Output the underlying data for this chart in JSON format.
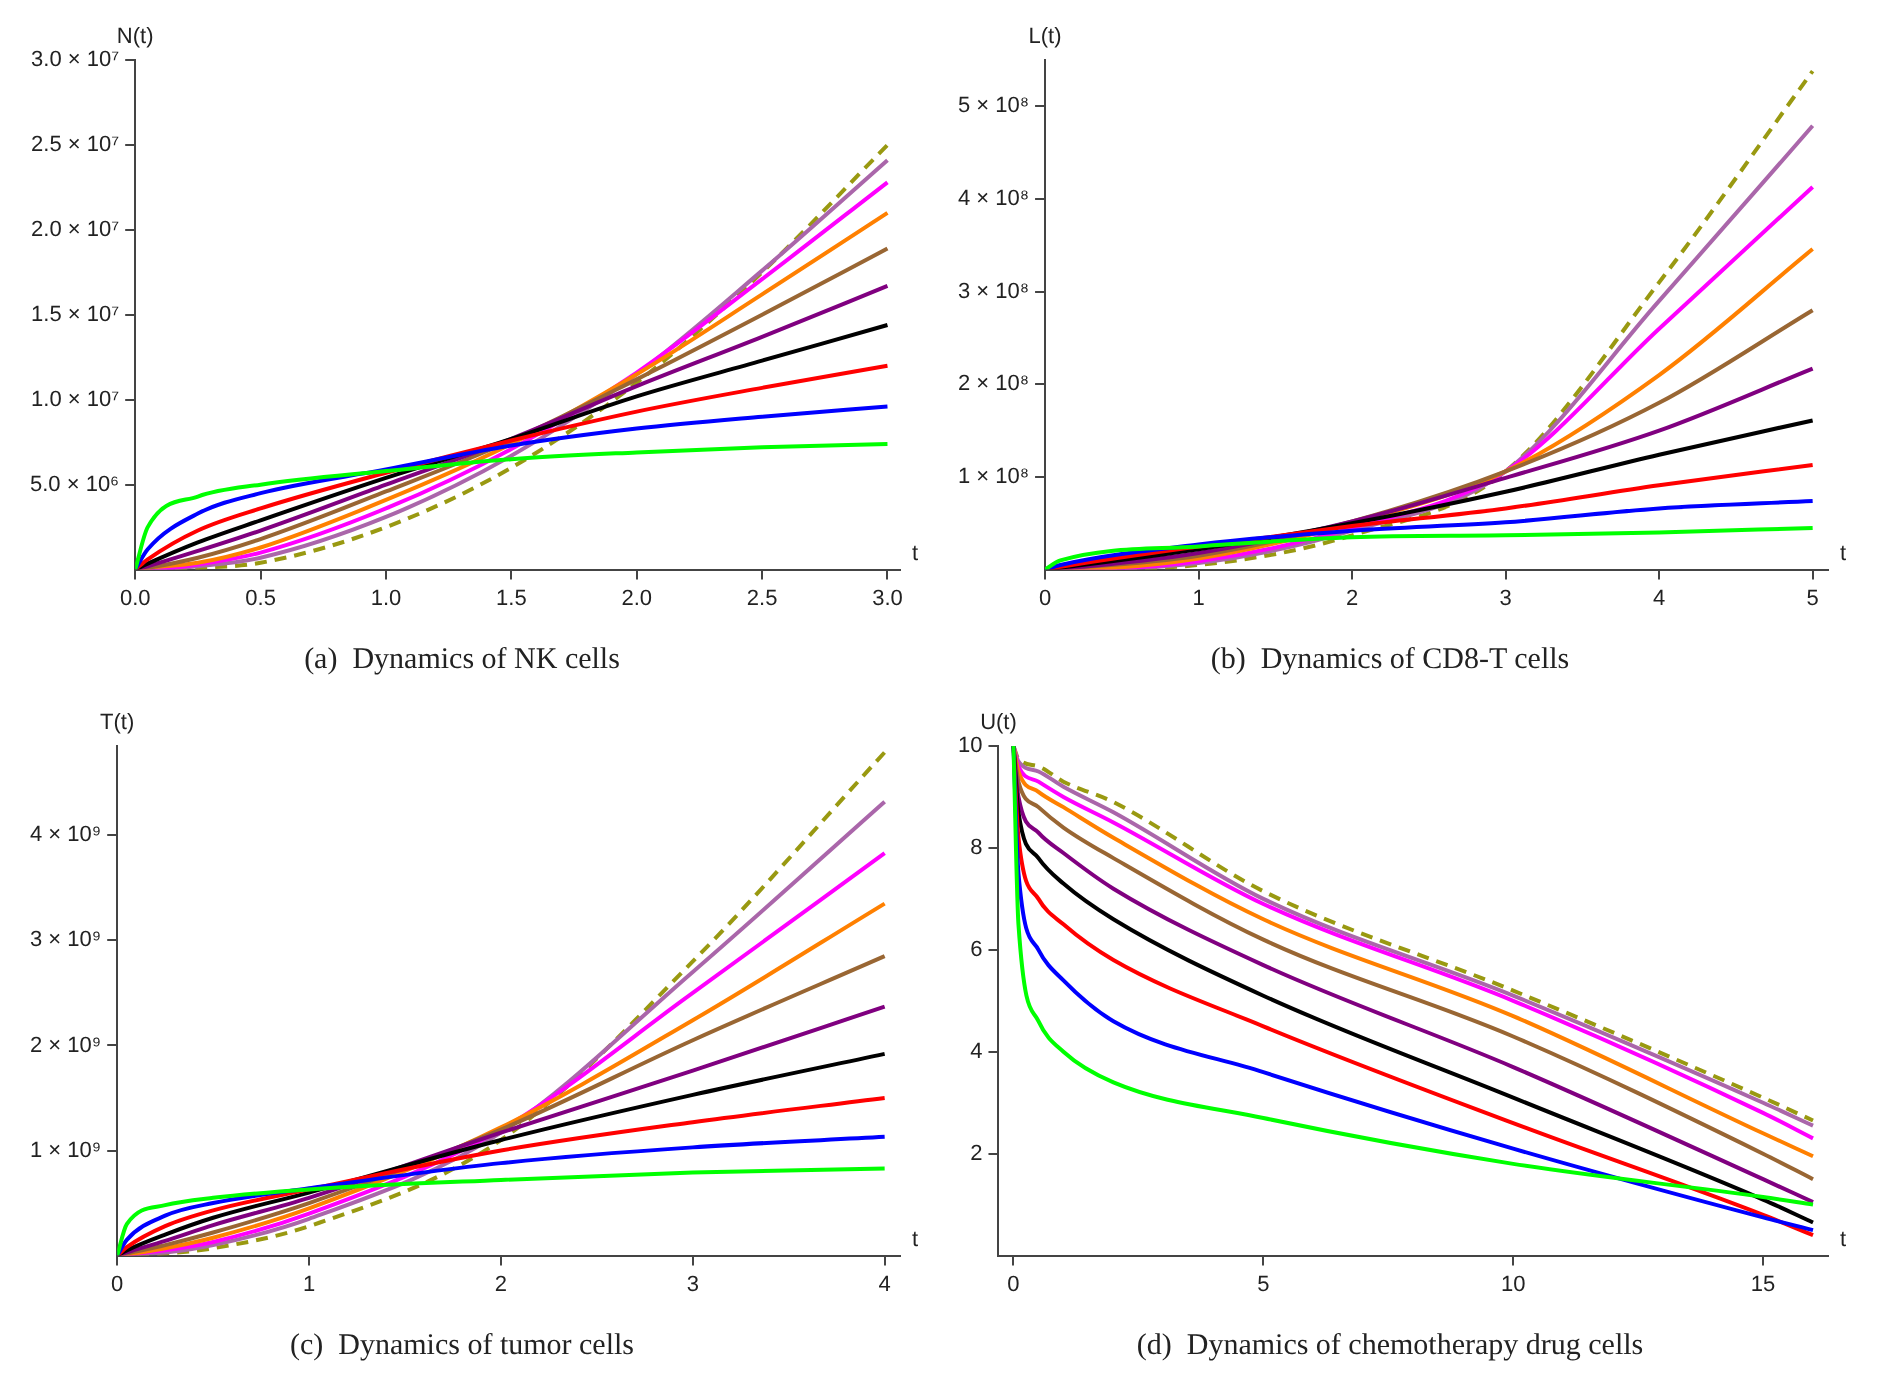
{
  "chart_data": [
    {
      "type": "line",
      "title": "(a)  Dynamics of NK cells",
      "xlabel": "t",
      "ylabel": "N(t)",
      "x": [
        0,
        0.05,
        0.25,
        0.5,
        1,
        1.5,
        2,
        2.5,
        3
      ],
      "xlim": [
        0,
        3.05
      ],
      "ylim": [
        0,
        30000000.0
      ],
      "xticks": [
        {
          "value": 0,
          "label": "0.0"
        },
        {
          "value": 0.5,
          "label": "0.5"
        },
        {
          "value": 1,
          "label": "1.0"
        },
        {
          "value": 1.5,
          "label": "1.5"
        },
        {
          "value": 2,
          "label": "2.0"
        },
        {
          "value": 2.5,
          "label": "2.5"
        },
        {
          "value": 3,
          "label": "3.0"
        }
      ],
      "yticks": [
        {
          "value": 5000000.0,
          "label": "5.0 × 10⁶"
        },
        {
          "value": 10000000.0,
          "label": "1.0 × 10⁷"
        },
        {
          "value": 15000000.0,
          "label": "1.5 × 10⁷"
        },
        {
          "value": 20000000.0,
          "label": "2.0 × 10⁷"
        },
        {
          "value": 25000000.0,
          "label": "2.5 × 10⁷"
        },
        {
          "value": 30000000.0,
          "label": "3.0 × 10⁷"
        }
      ],
      "series": [
        {
          "color": "#00ff00",
          "values": [
            0,
            2500000.0,
            4300000.0,
            5000000.0,
            5800000.0,
            6500000.0,
            6900000.0,
            7200000.0,
            7400000.0
          ]
        },
        {
          "color": "#0000ff",
          "values": [
            0,
            1200000.0,
            3300000.0,
            4500000.0,
            5900000.0,
            7300000.0,
            8300000.0,
            9000000.0,
            9600000.0
          ]
        },
        {
          "color": "#ff0000",
          "values": [
            0,
            600000.0,
            2300000.0,
            3600000.0,
            5700000.0,
            7600000.0,
            9300000.0,
            10700000.0,
            12000000.0
          ]
        },
        {
          "color": "#000000",
          "values": [
            0,
            350000.0,
            1600000.0,
            2900000.0,
            5400000.0,
            7700000.0,
            10200000.0,
            12300000.0,
            14400000.0
          ]
        },
        {
          "color": "#800080",
          "values": [
            0,
            200000.0,
            1100000.0,
            2300000.0,
            5000000.0,
            7700000.0,
            10800000.0,
            13700000.0,
            16700000.0
          ]
        },
        {
          "color": "#996633",
          "values": [
            0,
            100000.0,
            700000.0,
            1800000.0,
            4600000.0,
            7600000.0,
            11200000.0,
            15000000.0,
            18900000.0
          ]
        },
        {
          "color": "#ff8000",
          "values": [
            0,
            100000.0,
            400000.0,
            1300000.0,
            4100000.0,
            7400000.0,
            11500000.0,
            16200000.0,
            21000000.0
          ]
        },
        {
          "color": "#ff00ff",
          "values": [
            0,
            0,
            300000.0,
            1000000.0,
            3600000.0,
            7100000.0,
            11600000.0,
            17100000.0,
            22800000.0
          ]
        },
        {
          "color": "#aa66aa",
          "values": [
            0,
            0,
            200000.0,
            700000.0,
            3100000.0,
            6700000.0,
            11500000.0,
            17600000.0,
            24100000.0
          ]
        },
        {
          "color": "#999911",
          "line_style": "dashed",
          "values": [
            0,
            0,
            100000.0,
            400000.0,
            2500000.0,
            6000000.0,
            11000000.0,
            17500000.0,
            25000000.0
          ]
        }
      ]
    },
    {
      "type": "line",
      "title": "(b)  Dynamics of CD8-T cells",
      "xlabel": "t",
      "ylabel": "L(t)",
      "x": [
        0,
        0.1,
        1,
        2,
        3,
        4,
        5
      ],
      "xlim": [
        0,
        5.1
      ],
      "ylim": [
        0,
        550000000.0
      ],
      "xticks": [
        0,
        1,
        2,
        3,
        4,
        5
      ],
      "yticks": [
        {
          "value": 100000000.0,
          "label": "1 × 10⁸"
        },
        {
          "value": 200000000.0,
          "label": "2 × 10⁸"
        },
        {
          "value": 300000000.0,
          "label": "3 × 10⁸"
        },
        {
          "value": 400000000.0,
          "label": "4 × 10⁸"
        },
        {
          "value": 500000000.0,
          "label": "5 × 10⁸"
        }
      ],
      "series": [
        {
          "color": "#00ff00",
          "values": [
            0,
            10000000.0,
            25000000.0,
            35000000.0,
            37000000.0,
            40000000.0,
            45000000.0
          ]
        },
        {
          "color": "#0000ff",
          "values": [
            0,
            5000000.0,
            27000000.0,
            42000000.0,
            51000000.0,
            66000000.0,
            74000000.0
          ]
        },
        {
          "color": "#ff0000",
          "values": [
            0,
            3000000.0,
            25000000.0,
            47000000.0,
            66000000.0,
            91000000.0,
            113000000.0
          ]
        },
        {
          "color": "#000000",
          "values": [
            0,
            2000000.0,
            22000000.0,
            50000000.0,
            84000000.0,
            124000000.0,
            161000000.0
          ]
        },
        {
          "color": "#800080",
          "values": [
            0,
            1000000.0,
            18000000.0,
            52000000.0,
            99000000.0,
            150000000.0,
            217000000.0
          ]
        },
        {
          "color": "#996633",
          "values": [
            0,
            1000000.0,
            15000000.0,
            52000000.0,
            106000000.0,
            180000000.0,
            280000000.0
          ]
        },
        {
          "color": "#ff8000",
          "values": [
            0,
            0,
            12000000.0,
            50000000.0,
            106000000.0,
            210000000.0,
            346000000.0
          ]
        },
        {
          "color": "#ff00ff",
          "values": [
            0,
            0,
            9000000.0,
            45000000.0,
            106000000.0,
            260000000.0,
            413000000.0
          ]
        },
        {
          "color": "#aa66aa",
          "values": [
            0,
            0,
            7000000.0,
            42000000.0,
            106000000.0,
            290000000.0,
            479000000.0
          ]
        },
        {
          "color": "#999911",
          "line_style": "dashed",
          "values": [
            0,
            0,
            5000000.0,
            37000000.0,
            106000000.0,
            310000000.0,
            538000000.0
          ]
        }
      ]
    },
    {
      "type": "line",
      "title": "(c)  Dynamics of tumor cells",
      "xlabel": "t",
      "ylabel": "T(t)",
      "x": [
        0,
        0.05,
        0.25,
        0.5,
        1,
        2,
        3,
        4
      ],
      "xlim": [
        0,
        4.08
      ],
      "ylim": [
        0,
        4850000000.0
      ],
      "xticks": [
        0,
        1,
        2,
        3,
        4
      ],
      "yticks": [
        {
          "value": 1000000000.0,
          "label": "1 × 10⁹"
        },
        {
          "value": 2000000000.0,
          "label": "2 × 10⁹"
        },
        {
          "value": 3000000000.0,
          "label": "3 × 10⁹"
        },
        {
          "value": 4000000000.0,
          "label": "4 × 10⁹"
        }
      ],
      "series": [
        {
          "color": "#00ff00",
          "values": [
            0,
            300000000.0,
            480000000.0,
            550000000.0,
            630000000.0,
            720000000.0,
            790000000.0,
            830000000.0
          ]
        },
        {
          "color": "#0000ff",
          "values": [
            0,
            150000000.0,
            380000000.0,
            500000000.0,
            640000000.0,
            880000000.0,
            1030000000.0,
            1130000000.0
          ]
        },
        {
          "color": "#ff0000",
          "values": [
            0,
            80000000.0,
            280000000.0,
            430000000.0,
            630000000.0,
            1000000000.0,
            1270000000.0,
            1500000000.0
          ]
        },
        {
          "color": "#000000",
          "values": [
            0,
            50000000.0,
            200000000.0,
            360000000.0,
            600000000.0,
            1100000000.0,
            1530000000.0,
            1920000000.0
          ]
        },
        {
          "color": "#800080",
          "values": [
            0,
            30000000.0,
            140000000.0,
            290000000.0,
            550000000.0,
            1170000000.0,
            1760000000.0,
            2370000000.0
          ]
        },
        {
          "color": "#996633",
          "values": [
            0,
            20000000.0,
            100000000.0,
            220000000.0,
            500000000.0,
            1200000000.0,
            2050000000.0,
            2850000000.0
          ]
        },
        {
          "color": "#ff8000",
          "values": [
            0,
            10000000.0,
            70000000.0,
            170000000.0,
            450000000.0,
            1220000000.0,
            2240000000.0,
            3350000000.0
          ]
        },
        {
          "color": "#ff00ff",
          "values": [
            0,
            10000000.0,
            50000000.0,
            130000000.0,
            400000000.0,
            1200000000.0,
            2500000000.0,
            3830000000.0
          ]
        },
        {
          "color": "#aa66aa",
          "values": [
            0,
            10000000.0,
            30000000.0,
            100000000.0,
            350000000.0,
            1170000000.0,
            2700000000.0,
            4320000000.0
          ]
        },
        {
          "color": "#999911",
          "line_style": "dashed",
          "values": [
            0,
            0,
            20000000.0,
            70000000.0,
            280000000.0,
            1100000000.0,
            2800000000.0,
            4790000000.0
          ]
        }
      ]
    },
    {
      "type": "line",
      "title": "(d)  Dynamics of chemotherapy drug cells",
      "xlabel": "t",
      "ylabel": "U(t)",
      "x": [
        0,
        0.1,
        0.5,
        1,
        2,
        5,
        10,
        15,
        16
      ],
      "xlim": [
        -0.3,
        16.3
      ],
      "ylim": [
        0,
        10
      ],
      "xticks": [
        0,
        5,
        10,
        15
      ],
      "yticks": [
        2,
        4,
        6,
        8,
        10
      ],
      "series": [
        {
          "color": "#00ff00",
          "values": [
            10,
            6.5,
            4.6,
            4.0,
            3.4,
            2.7,
            1.8,
            1.15,
            1.0
          ]
        },
        {
          "color": "#0000ff",
          "values": [
            10,
            7.5,
            6.0,
            5.4,
            4.6,
            3.6,
            2.1,
            0.75,
            0.5
          ]
        },
        {
          "color": "#ff0000",
          "values": [
            10,
            8.2,
            7.0,
            6.5,
            5.8,
            4.5,
            2.6,
            0.8,
            0.4
          ]
        },
        {
          "color": "#000000",
          "values": [
            10,
            8.7,
            7.8,
            7.3,
            6.6,
            5.1,
            3.1,
            1.1,
            0.65
          ]
        },
        {
          "color": "#800080",
          "values": [
            10,
            9.0,
            8.3,
            7.9,
            7.2,
            5.7,
            3.7,
            1.5,
            1.05
          ]
        },
        {
          "color": "#996633",
          "values": [
            10,
            9.3,
            8.8,
            8.4,
            7.8,
            6.2,
            4.3,
            2.0,
            1.5
          ]
        },
        {
          "color": "#ff8000",
          "values": [
            10,
            9.5,
            9.1,
            8.8,
            8.2,
            6.6,
            4.7,
            2.4,
            1.95
          ]
        },
        {
          "color": "#ff00ff",
          "values": [
            10,
            9.6,
            9.3,
            9.0,
            8.5,
            6.9,
            5.0,
            2.8,
            2.3
          ]
        },
        {
          "color": "#aa66aa",
          "values": [
            10,
            9.7,
            9.5,
            9.2,
            8.7,
            7.0,
            5.1,
            3.0,
            2.55
          ]
        },
        {
          "color": "#999911",
          "line_style": "dashed",
          "values": [
            10,
            9.75,
            9.6,
            9.3,
            8.9,
            7.15,
            5.2,
            3.1,
            2.65
          ]
        }
      ]
    }
  ]
}
